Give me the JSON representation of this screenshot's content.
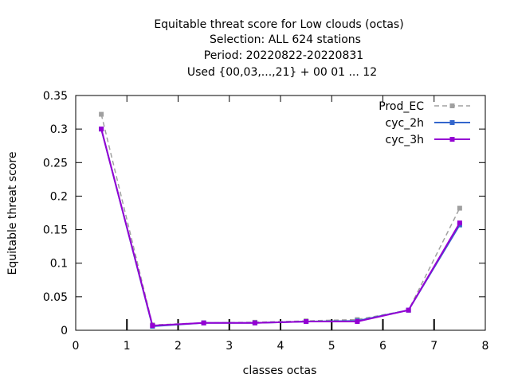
{
  "chart_data": {
    "type": "line",
    "title_lines": [
      "Equitable threat score  for Low clouds (octas)",
      "Selection: ALL    624 stations",
      "Period: 20220822-20220831",
      "Used {00,03,...,21} + 00 01 ... 12"
    ],
    "xlabel": "classes octas",
    "ylabel": "Equitable threat score",
    "xlim": [
      0,
      8
    ],
    "ylim": [
      0,
      0.35
    ],
    "xticks": [
      0,
      1,
      2,
      3,
      4,
      5,
      6,
      7,
      8
    ],
    "xtick_labels": [
      "0",
      "1",
      "2",
      "3",
      "4",
      "5",
      "6",
      "7",
      "8"
    ],
    "yticks": [
      0,
      0.05,
      0.1,
      0.15,
      0.2,
      0.25,
      0.3,
      0.35
    ],
    "ytick_labels": [
      "0",
      "0.05",
      "0.1",
      "0.15",
      "0.2",
      "0.25",
      "0.3",
      "0.35"
    ],
    "x": [
      0.5,
      1.5,
      2.5,
      3.5,
      4.5,
      5.5,
      6.5,
      7.5
    ],
    "legend_position": "top-right",
    "grid": false,
    "series": [
      {
        "name": "Prod_EC",
        "color": "#a0a0a0",
        "dashed": true,
        "values": [
          0.322,
          0.008,
          0.011,
          0.012,
          0.014,
          0.016,
          0.03,
          0.182
        ]
      },
      {
        "name": "cyc_2h",
        "color": "#3366cc",
        "dashed": false,
        "values": [
          0.3,
          0.006,
          0.011,
          0.011,
          0.013,
          0.014,
          0.03,
          0.157
        ]
      },
      {
        "name": "cyc_3h",
        "color": "#9400d3",
        "dashed": false,
        "values": [
          0.3,
          0.007,
          0.011,
          0.011,
          0.013,
          0.013,
          0.03,
          0.16
        ]
      }
    ]
  }
}
